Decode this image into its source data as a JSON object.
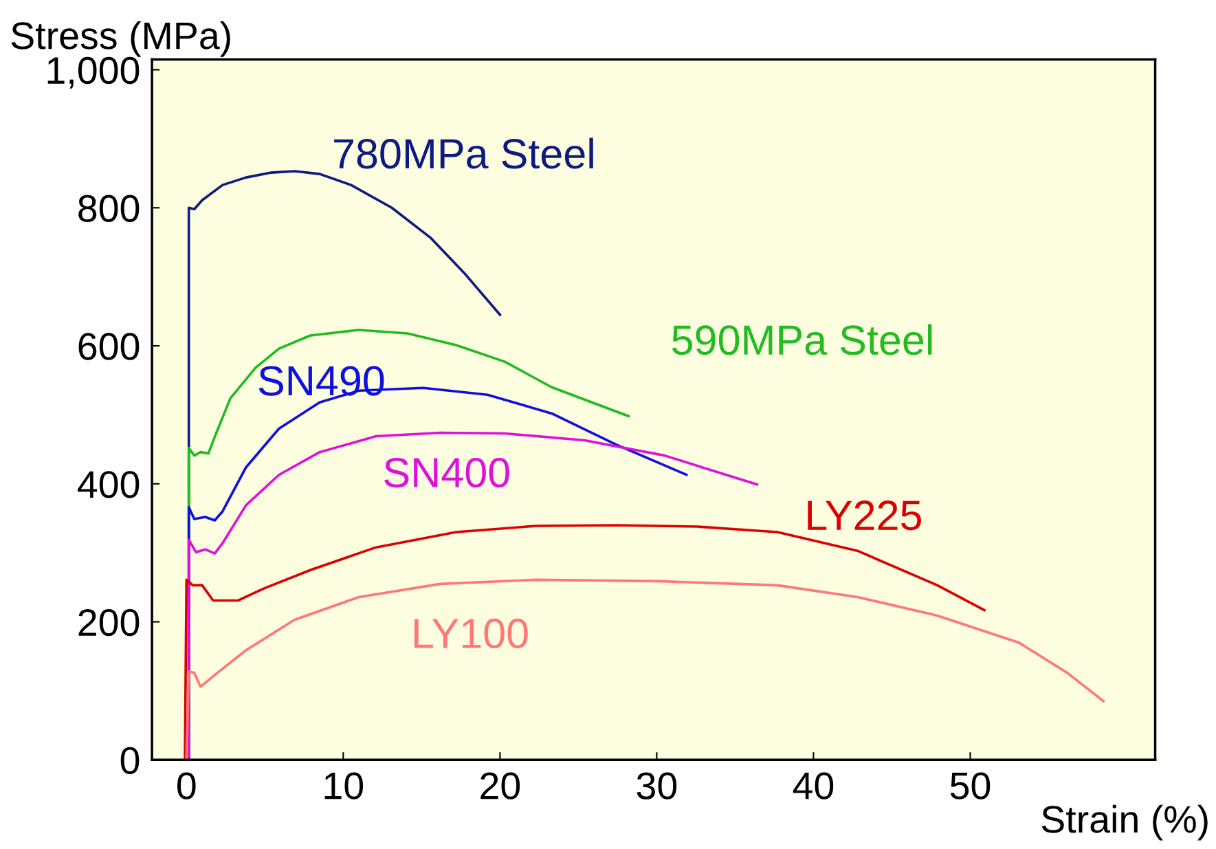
{
  "chart_data": {
    "type": "line",
    "xlabel": "Strain (%)",
    "ylabel": "Stress (MPa)",
    "xlim": [
      -2.2,
      61.8
    ],
    "ylim": [
      0,
      1015
    ],
    "xticks": [
      0,
      10,
      20,
      30,
      40,
      50
    ],
    "yticks": [
      0,
      200,
      400,
      600,
      800,
      {
        "value": 1000,
        "label": "1,000"
      }
    ],
    "grid": false,
    "legend": false,
    "marker": "none",
    "line_style": "solid",
    "series": [
      {
        "name": "780MPa Steel",
        "color": "#0d1a80",
        "x": [
          0.15,
          0.15,
          0.5,
          1.0,
          2.3,
          3.8,
          5.4,
          6.9,
          8.5,
          10.5,
          13.1,
          15.6,
          17.7,
          20.0
        ],
        "values": [
          0,
          800,
          798,
          811,
          833,
          844,
          851,
          853,
          849,
          833,
          800,
          756,
          706,
          645
        ]
      },
      {
        "name": "590MPa Steel",
        "color": "#22bb22",
        "x": [
          0.15,
          0.15,
          0.5,
          0.9,
          1.4,
          1.8,
          2.8,
          4.4,
          5.9,
          7.9,
          11.0,
          14.1,
          17.2,
          20.3,
          23.3,
          28.2
        ],
        "values": [
          0,
          452,
          441,
          446,
          444,
          468,
          524,
          568,
          596,
          615,
          623,
          618,
          601,
          577,
          540,
          498
        ]
      },
      {
        "name": "SN490",
        "color": "#1010dd",
        "x": [
          0.15,
          0.15,
          0.5,
          1.2,
          1.8,
          2.3,
          3.8,
          5.9,
          8.5,
          11.0,
          15.1,
          19.2,
          23.3,
          27.4,
          31.9
        ],
        "values": [
          0,
          366,
          349,
          352,
          347,
          360,
          424,
          480,
          518,
          535,
          539,
          529,
          502,
          457,
          413
        ]
      },
      {
        "name": "SN400",
        "color": "#dd11dd",
        "x": [
          0.15,
          0.15,
          0.6,
          1.2,
          1.8,
          2.3,
          3.8,
          5.9,
          8.5,
          12.1,
          16.2,
          20.3,
          25.4,
          30.5,
          36.4
        ],
        "values": [
          0,
          319,
          301,
          305,
          299,
          314,
          369,
          413,
          446,
          469,
          474,
          473,
          463,
          441,
          399
        ]
      },
      {
        "name": "LY225",
        "color": "#dd0000",
        "x": [
          -0.1,
          0.0,
          0.4,
          1.0,
          1.7,
          3.3,
          4.9,
          7.9,
          12.1,
          17.2,
          22.3,
          27.4,
          32.6,
          37.7,
          42.8,
          47.9,
          50.9
        ],
        "values": [
          0,
          261,
          253,
          253,
          231,
          231,
          248,
          275,
          308,
          330,
          339,
          340,
          338,
          330,
          303,
          253,
          217
        ]
      },
      {
        "name": "LY100",
        "color": "#ff7777",
        "x": [
          0.0,
          0.15,
          0.5,
          0.9,
          1.8,
          3.8,
          6.9,
          11.0,
          16.2,
          22.3,
          30.0,
          37.7,
          42.8,
          47.9,
          53.1,
          56.2,
          58.5
        ],
        "values": [
          0,
          128,
          126,
          106,
          123,
          159,
          203,
          236,
          255,
          261,
          259,
          253,
          236,
          209,
          170,
          126,
          85
        ]
      }
    ]
  }
}
